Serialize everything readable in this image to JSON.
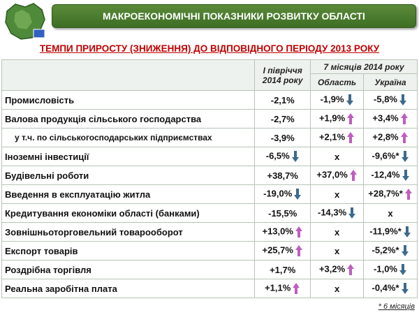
{
  "header": {
    "title": "МАКРОЕКОНОМІЧНІ ПОКАЗНИКИ РОЗВИТКУ ОБЛАСТІ",
    "subtitle": "ТЕМПИ ПРИРОСТУ (ЗНИЖЕННЯ) ДО ВІДПОВІДНОГО ПЕРІОДУ 2013 РОКУ"
  },
  "table": {
    "col_half_year": "І півріччя 2014 року",
    "col_seven_months": "7 місяців 2014 року",
    "col_region": "Область",
    "col_ukraine": "Україна",
    "rows": [
      {
        "label": "Промисловість",
        "cells": [
          {
            "text": "-2,1%"
          },
          {
            "text": "-1,9%",
            "arrow": "down"
          },
          {
            "text": "-5,8%",
            "arrow": "down"
          }
        ]
      },
      {
        "label": "Валова продукція сільського господарства",
        "cells": [
          {
            "text": "-2,7%"
          },
          {
            "text": "+1,9%",
            "arrow": "up"
          },
          {
            "text": "+3,4%",
            "arrow": "up"
          }
        ]
      },
      {
        "label": "у т.ч. по сільськогосподарських підприємствах",
        "sub": true,
        "cells": [
          {
            "text": "-3,9%"
          },
          {
            "text": "+2,1%",
            "arrow": "up"
          },
          {
            "text": "+2,8%",
            "arrow": "up"
          }
        ]
      },
      {
        "label": "Іноземні інвестиції",
        "cells": [
          {
            "text": "-6,5%",
            "arrow": "down"
          },
          {
            "text": "х"
          },
          {
            "text": "-9,6%*",
            "arrow": "down"
          }
        ]
      },
      {
        "label": "Будівельні роботи",
        "cells": [
          {
            "text": "+38,7%"
          },
          {
            "text": "+37,0%",
            "arrow": "up"
          },
          {
            "text": "-12,4%",
            "arrow": "down"
          }
        ]
      },
      {
        "label": "Введення в експлуатацію житла",
        "cells": [
          {
            "text": "-19,0%",
            "arrow": "down"
          },
          {
            "text": "х"
          },
          {
            "text": "+28,7%*",
            "arrow": "up"
          }
        ]
      },
      {
        "label": "Кредитування економіки області (банками)",
        "cells": [
          {
            "text": "-15,5%"
          },
          {
            "text": "-14,3%",
            "arrow": "down"
          },
          {
            "text": "х"
          }
        ]
      },
      {
        "label": "Зовнішньоторговельний товарооборот",
        "cells": [
          {
            "text": "+13,0%",
            "arrow": "up"
          },
          {
            "text": "х"
          },
          {
            "text": "-11,9%*",
            "arrow": "down"
          }
        ]
      },
      {
        "label": "Експорт товарів",
        "cells": [
          {
            "text": "+25,7%",
            "arrow": "up"
          },
          {
            "text": "х"
          },
          {
            "text": "-5,2%*",
            "arrow": "down"
          }
        ]
      },
      {
        "label": "Роздрібна торгівля",
        "cells": [
          {
            "text": "+1,7%"
          },
          {
            "text": "+3,2%",
            "arrow": "up"
          },
          {
            "text": "-1,0%",
            "arrow": "down"
          }
        ]
      },
      {
        "label": "Реальна заробітна плата",
        "cells": [
          {
            "text": "+1,1%",
            "arrow": "up"
          },
          {
            "text": "х"
          },
          {
            "text": "-0,4%*",
            "arrow": "down"
          }
        ]
      }
    ]
  },
  "footnote": "* 6 місяців"
}
